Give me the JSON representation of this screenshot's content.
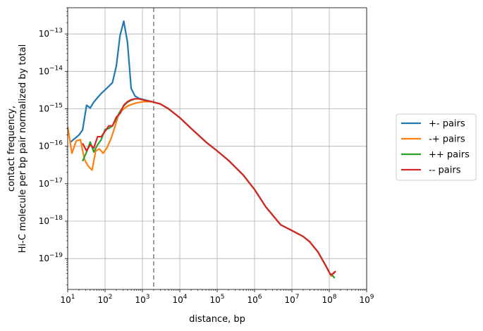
{
  "chart_data": {
    "type": "line",
    "xlabel": "distance, bp",
    "ylabel_lines": [
      "contact frequency,",
      "Hi-C molecule per bp pair normalized by total"
    ],
    "xscale": "log",
    "yscale": "log",
    "xlim": [
      10,
      1000000000
    ],
    "ylim": [
      1.5e-20,
      5e-13
    ],
    "grid": true,
    "legend_position": "outside-right",
    "vline": {
      "x": 2000,
      "color": "#7f7f7f",
      "style": "dashed"
    },
    "x_ticks": [
      {
        "value": 10,
        "base": "10",
        "exp": "1"
      },
      {
        "value": 100,
        "base": "10",
        "exp": "2"
      },
      {
        "value": 1000,
        "base": "10",
        "exp": "3"
      },
      {
        "value": 10000,
        "base": "10",
        "exp": "4"
      },
      {
        "value": 100000,
        "base": "10",
        "exp": "5"
      },
      {
        "value": 1000000,
        "base": "10",
        "exp": "6"
      },
      {
        "value": 10000000,
        "base": "10",
        "exp": "7"
      },
      {
        "value": 100000000,
        "base": "10",
        "exp": "8"
      },
      {
        "value": 1000000000,
        "base": "10",
        "exp": "9"
      }
    ],
    "y_ticks": [
      {
        "value": 1e-19,
        "base": "10",
        "exp": "−19"
      },
      {
        "value": 1e-18,
        "base": "10",
        "exp": "−18"
      },
      {
        "value": 1e-17,
        "base": "10",
        "exp": "−17"
      },
      {
        "value": 1e-16,
        "base": "10",
        "exp": "−16"
      },
      {
        "value": 1e-15,
        "base": "10",
        "exp": "−15"
      },
      {
        "value": 1e-14,
        "base": "10",
        "exp": "−14"
      },
      {
        "value": 1e-13,
        "base": "10",
        "exp": "−13"
      }
    ],
    "tail": [
      [
        2000,
        1.55e-15
      ],
      [
        3000,
        1.35e-15
      ],
      [
        5000,
        1e-15
      ],
      [
        10000,
        5.8e-16
      ],
      [
        20000,
        3e-16
      ],
      [
        50000,
        1.3e-16
      ],
      [
        100000,
        7.5e-17
      ],
      [
        200000,
        4.2e-17
      ],
      [
        500000,
        1.7e-17
      ],
      [
        1000000,
        7e-18
      ],
      [
        2000000,
        2.4e-18
      ],
      [
        5000000,
        8e-19
      ],
      [
        10000000,
        5.6e-19
      ],
      [
        20000000,
        3.9e-19
      ],
      [
        30000000,
        2.8e-19
      ],
      [
        50000000,
        1.5e-19
      ],
      [
        80000000,
        6.5e-20
      ],
      [
        110000000,
        3.6e-20
      ]
    ],
    "series": [
      {
        "name": "+- pairs",
        "color": "#1f77b4",
        "points": [
          [
            12,
            1.3e-16
          ],
          [
            20,
            2e-16
          ],
          [
            25,
            2.7e-16
          ],
          [
            32,
            1.25e-15
          ],
          [
            40,
            1.05e-15
          ],
          [
            50,
            1.5e-15
          ],
          [
            63,
            2e-15
          ],
          [
            80,
            2.6e-15
          ],
          [
            100,
            3.2e-15
          ],
          [
            126,
            4e-15
          ],
          [
            158,
            5e-15
          ],
          [
            200,
            1.4e-14
          ],
          [
            251,
            9e-14
          ],
          [
            316,
            2.2e-13
          ],
          [
            398,
            6e-14
          ],
          [
            500,
            3.5e-15
          ],
          [
            630,
            2.2e-15
          ],
          [
            800,
            1.9e-15
          ],
          [
            1000,
            1.8e-15
          ],
          [
            1260,
            1.7e-15
          ],
          [
            1580,
            1.6e-15
          ]
        ],
        "end": [
          [
            110000000,
            3.6e-20
          ],
          [
            140000000,
            4.2e-20
          ]
        ]
      },
      {
        "name": "-+ pairs",
        "color": "#ff7f0e",
        "points": [
          [
            10,
            3.3e-16
          ],
          [
            13,
            6.5e-17
          ],
          [
            17,
            1.4e-16
          ],
          [
            22,
            1.5e-16
          ],
          [
            28,
            4.5e-17
          ],
          [
            35,
            3e-17
          ],
          [
            45,
            2.3e-17
          ],
          [
            56,
            7.5e-17
          ],
          [
            70,
            8.5e-17
          ],
          [
            89,
            6.5e-17
          ],
          [
            112,
            9e-17
          ],
          [
            141,
            1.5e-16
          ],
          [
            178,
            3e-16
          ],
          [
            224,
            6.5e-16
          ],
          [
            282,
            9e-16
          ],
          [
            355,
            1.1e-15
          ],
          [
            447,
            1.25e-15
          ],
          [
            562,
            1.35e-15
          ],
          [
            708,
            1.45e-15
          ],
          [
            891,
            1.5e-15
          ],
          [
            1120,
            1.55e-15
          ],
          [
            1410,
            1.55e-15
          ],
          [
            1780,
            1.55e-15
          ]
        ],
        "end": [
          [
            110000000,
            3.3e-20
          ],
          [
            140000000,
            4.5e-20
          ]
        ]
      },
      {
        "name": "++ pairs",
        "color": "#2ca02c",
        "points": [
          [
            25,
            4e-17
          ],
          [
            32,
            7e-17
          ],
          [
            40,
            1.3e-16
          ],
          [
            50,
            7e-17
          ],
          [
            63,
            1.1e-16
          ],
          [
            79,
            1.5e-16
          ],
          [
            100,
            2.8e-16
          ],
          [
            126,
            3e-16
          ],
          [
            158,
            3.5e-16
          ],
          [
            200,
            5.5e-16
          ],
          [
            251,
            8.5e-16
          ],
          [
            316,
            1.2e-15
          ],
          [
            398,
            1.5e-15
          ],
          [
            500,
            1.7e-15
          ],
          [
            630,
            1.85e-15
          ],
          [
            794,
            1.85e-15
          ],
          [
            1000,
            1.75e-15
          ],
          [
            1260,
            1.65e-15
          ],
          [
            1580,
            1.6e-15
          ]
        ],
        "end": [
          [
            110000000,
            4e-20
          ],
          [
            140000000,
            3e-20
          ]
        ]
      },
      {
        "name": "-- pairs",
        "color": "#d62728",
        "points": [
          [
            25,
            1.2e-16
          ],
          [
            32,
            7.5e-17
          ],
          [
            40,
            1.1e-16
          ],
          [
            50,
            9e-17
          ],
          [
            63,
            1.8e-16
          ],
          [
            79,
            1.8e-16
          ],
          [
            100,
            2.5e-16
          ],
          [
            126,
            3.5e-16
          ],
          [
            158,
            3.5e-16
          ],
          [
            200,
            6e-16
          ],
          [
            251,
            7.5e-16
          ],
          [
            316,
            1.25e-15
          ],
          [
            398,
            1.55e-15
          ],
          [
            500,
            1.75e-15
          ],
          [
            630,
            1.85e-15
          ],
          [
            794,
            1.85e-15
          ],
          [
            1000,
            1.75e-15
          ],
          [
            1260,
            1.65e-15
          ],
          [
            1580,
            1.6e-15
          ]
        ],
        "end": [
          [
            110000000,
            3.6e-20
          ],
          [
            150000000,
            4.6e-20
          ]
        ]
      }
    ]
  }
}
